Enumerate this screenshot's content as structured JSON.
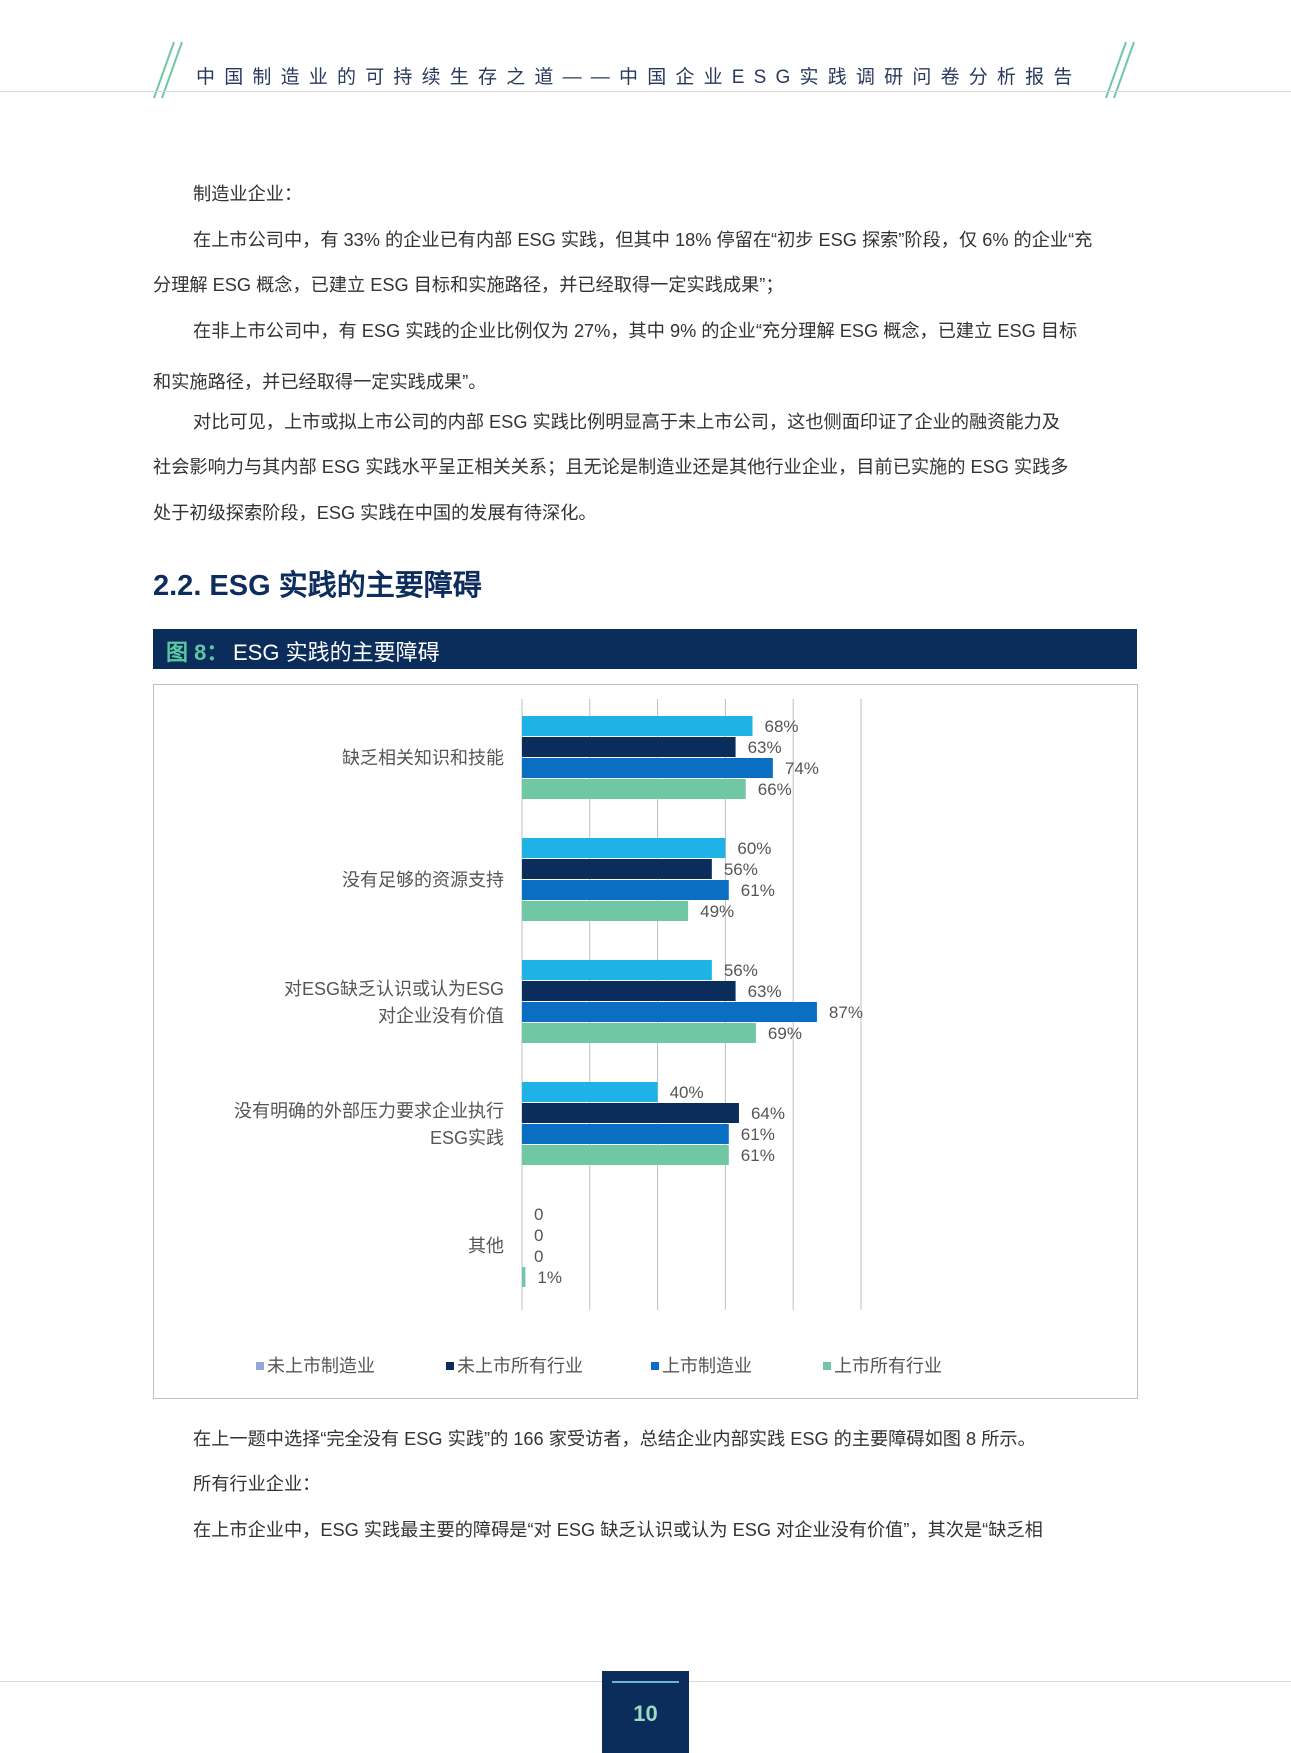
{
  "header": {
    "title": "中国制造业的可持续生存之道——中国企业ESG实践调研问卷分析报告"
  },
  "body": {
    "p1": "制造业企业：",
    "p2_line1": "在上市公司中，有 33% 的企业已有内部 ESG 实践，但其中 18% 停留在“初步 ESG 探索”阶段，仅 6% 的企业“充",
    "p2_line2": "分理解 ESG 概念，已建立 ESG 目标和实施路径，并已经取得一定实践成果”；",
    "p3_line1": "在非上市公司中，有 ESG 实践的企业比例仅为 27%，其中 9% 的企业“充分理解 ESG 概念，已建立 ESG 目标",
    "p3_line2": "和实施路径，并已经取得一定实践成果”。",
    "p4_line1": "对比可见，上市或拟上市公司的内部 ESG 实践比例明显高于未上市公司，这也侧面印证了企业的融资能力及",
    "p4_line2": "社会影响力与其内部 ESG 实践水平呈正相关关系；且无论是制造业还是其他行业企业，目前已实施的 ESG 实践多",
    "p4_line3": "处于初级探索阶段，ESG 实践在中国的发展有待深化。",
    "section_title": "2.2. ESG 实践的主要障碍",
    "figure_label": "图 8：",
    "figure_title": "ESG 实践的主要障碍",
    "p5": "在上一题中选择“完全没有 ESG 实践”的 166 家受访者，总结企业内部实践 ESG 的主要障碍如图 8 所示。",
    "p6": "所有行业企业：",
    "p7": "在上市企业中，ESG 实践最主要的障碍是“对 ESG 缺乏认识或认为 ESG 对企业没有价值”，其次是“缺乏相"
  },
  "chart_data": {
    "type": "bar",
    "orientation": "horizontal",
    "categories": [
      [
        "缺乏相关知识和技能"
      ],
      [
        "没有足够的资源支持"
      ],
      [
        "对ESG缺乏认识或认为ESG",
        "对企业没有价值"
      ],
      [
        "没有明确的外部压力要求企业执行",
        "ESG实践"
      ],
      [
        "其他"
      ]
    ],
    "series": [
      {
        "name": "未上市制造业",
        "color": "#1fb2e6",
        "values": [
          68,
          60,
          56,
          40,
          0
        ],
        "labels": [
          "68%",
          "60%",
          "56%",
          "40%",
          "0"
        ]
      },
      {
        "name": "未上市所有行业",
        "color": "#0b2d5b",
        "values": [
          63,
          56,
          63,
          64,
          0
        ],
        "labels": [
          "63%",
          "56%",
          "63%",
          "64%",
          "0"
        ]
      },
      {
        "name": "上市制造业",
        "color": "#0a6fc2",
        "values": [
          74,
          61,
          87,
          61,
          0
        ],
        "labels": [
          "74%",
          "61%",
          "87%",
          "61%",
          "0"
        ]
      },
      {
        "name": "上市所有行业",
        "color": "#6fc8a3",
        "values": [
          66,
          49,
          69,
          61,
          1
        ],
        "labels": [
          "66%",
          "49%",
          "69%",
          "61%",
          "1%"
        ]
      }
    ],
    "legend_colors": [
      "#8fa8d8",
      "#0b2d5b",
      "#0a6fc2",
      "#6fc8a3"
    ],
    "xlim": [
      0,
      100
    ],
    "grid": true,
    "legend_position": "bottom"
  },
  "footer": {
    "page_number": "10"
  }
}
